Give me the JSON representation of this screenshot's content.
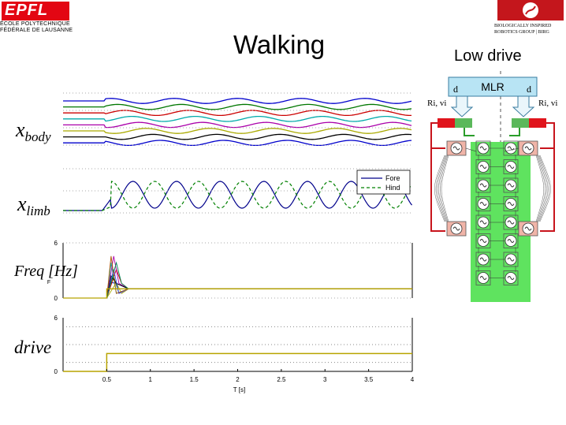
{
  "header": {
    "title": "Walking",
    "subtitle": "Low drive",
    "epfl_logo": {
      "wordmark": "EPFL",
      "line1": "ÉCOLE POLYTECHNIQUE",
      "line2": "FÉDÉRALE DE LAUSANNE"
    },
    "biorob_logo": {
      "line1": "BIOLOGICALLY INSPIRED",
      "line2": "ROBOTICS GROUP | BIRG"
    }
  },
  "plot_labels": {
    "xbody_main": "x",
    "xbody_sub": "body",
    "xlimb_main": "x",
    "xlimb_sub": "limb",
    "freq": "Freq [Hz]",
    "drive": "drive"
  },
  "chart_data": [
    {
      "type": "line",
      "panel": "xbody",
      "series_count": 8,
      "oscillation_periods": 5.5,
      "colors": [
        "#0000cc",
        "#007700",
        "#cc0000",
        "#00aaaa",
        "#aa00aa",
        "#aaaa00",
        "#000000",
        "#0000cc"
      ]
    },
    {
      "type": "line",
      "panel": "xlimb",
      "legend": [
        "Fore",
        "Hind"
      ],
      "legend_position": "top-right",
      "series": [
        {
          "name": "Fore",
          "color": "#00008b",
          "style": "solid"
        },
        {
          "name": "Hind",
          "color": "#008000",
          "style": "dashed"
        }
      ],
      "onset_x": 0.55,
      "period": 0.5
    },
    {
      "type": "line",
      "panel": "frequency",
      "yticks": [
        "0",
        "6"
      ],
      "ylim": [
        0,
        6
      ],
      "ylabel_fragment": "F",
      "steady_value": 1.0,
      "onset_x": 0.5,
      "peak_value": 4.8,
      "settle_x": 0.7
    },
    {
      "type": "line",
      "panel": "drive",
      "yticks": [
        "0",
        "6"
      ],
      "ylim": [
        0,
        6
      ],
      "x": [
        0,
        0.5,
        0.5,
        4
      ],
      "y": [
        0,
        0,
        2,
        2
      ],
      "xticks": [
        "0.5",
        "1",
        "1.5",
        "2",
        "2.5",
        "3",
        "3.5",
        "4"
      ],
      "xtick_values": [
        0.5,
        1,
        1.5,
        2,
        2.5,
        3,
        3.5,
        4
      ],
      "xlim": [
        0,
        4
      ],
      "xlabel": "T [s]"
    }
  ],
  "diagram": {
    "mlr_label": "MLR",
    "d_left": "d",
    "d_right": "d",
    "ri_left": "Ri, vi",
    "ri_right": "Ri, vi",
    "body_oscillators_per_side": 8,
    "limb_oscillator_symbol": "~"
  }
}
